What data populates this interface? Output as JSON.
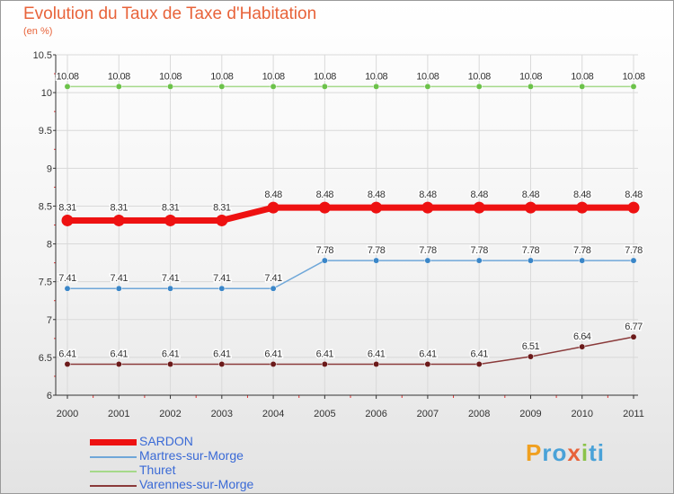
{
  "chart_data": {
    "type": "line",
    "title": "Evolution du Taux de Taxe d'Habitation",
    "subtitle": "(en %)",
    "xlabel": "",
    "ylabel": "",
    "ylim": [
      6,
      10.5
    ],
    "yticks": [
      "6",
      "6.5",
      "7",
      "7.5",
      "8",
      "8.5",
      "9",
      "9.5",
      "10",
      "10.5"
    ],
    "ytick_values": [
      6,
      6.5,
      7,
      7.5,
      8,
      8.5,
      9,
      9.5,
      10,
      10.5
    ],
    "categories": [
      "2000",
      "2001",
      "2002",
      "2003",
      "2004",
      "2005",
      "2006",
      "2007",
      "2008",
      "2009",
      "2010",
      "2011"
    ],
    "legend_position": "bottom-left",
    "series": [
      {
        "name": "SARDON",
        "color": "#ee1111",
        "point_color": "#ee1111",
        "label_color": "#ffffff",
        "highlight": true,
        "values": [
          8.31,
          8.31,
          8.31,
          8.31,
          8.48,
          8.48,
          8.48,
          8.48,
          8.48,
          8.48,
          8.48,
          8.48
        ],
        "labels": [
          "8.31",
          "8.31",
          "8.31",
          "8.31",
          "8.48",
          "8.48",
          "8.48",
          "8.48",
          "8.48",
          "8.48",
          "8.48",
          "8.48"
        ]
      },
      {
        "name": "Martres-sur-Morge",
        "color": "#6fa7d9",
        "point_color": "#3a86c8",
        "label_color": "#ffffff",
        "highlight": false,
        "values": [
          7.41,
          7.41,
          7.41,
          7.41,
          7.41,
          7.78,
          7.78,
          7.78,
          7.78,
          7.78,
          7.78,
          7.78
        ],
        "labels": [
          "7.41",
          "7.41",
          "7.41",
          "7.41",
          "7.41",
          "7.78",
          "7.78",
          "7.78",
          "7.78",
          "7.78",
          "7.78",
          "7.78"
        ]
      },
      {
        "name": "Thuret",
        "color": "#a5d98a",
        "point_color": "#6cc24a",
        "label_color": "#ffffff",
        "highlight": false,
        "values": [
          10.08,
          10.08,
          10.08,
          10.08,
          10.08,
          10.08,
          10.08,
          10.08,
          10.08,
          10.08,
          10.08,
          10.08
        ],
        "labels": [
          "10.08",
          "10.08",
          "10.08",
          "10.08",
          "10.08",
          "10.08",
          "10.08",
          "10.08",
          "10.08",
          "10.08",
          "10.08",
          "10.08"
        ]
      },
      {
        "name": "Varennes-sur-Morge",
        "color": "#8a3a3a",
        "point_color": "#6b1a1a",
        "label_color": "#ffffff",
        "highlight": false,
        "values": [
          6.41,
          6.41,
          6.41,
          6.41,
          6.41,
          6.41,
          6.41,
          6.41,
          6.41,
          6.51,
          6.64,
          6.77
        ],
        "labels": [
          "6.41",
          "6.41",
          "6.41",
          "6.41",
          "6.41",
          "6.41",
          "6.41",
          "6.41",
          "6.41",
          "6.51",
          "6.64",
          "6.77"
        ]
      }
    ]
  },
  "legend_label_color": "#3a6ad6",
  "logo": {
    "letters": [
      "P",
      "r",
      "o",
      "x",
      "i",
      "t",
      "i"
    ],
    "colors": [
      "#f0a020",
      "#49a2d8",
      "#49a2d8",
      "#e8633a",
      "#8bc34a",
      "#49a2d8",
      "#49a2d8"
    ]
  },
  "theme": {
    "title_color": "#e8633a",
    "axis_color": "#333333",
    "grid_color": "#d9d9d9",
    "tick_color": "#dd3333",
    "value_label_color": "#333333"
  }
}
